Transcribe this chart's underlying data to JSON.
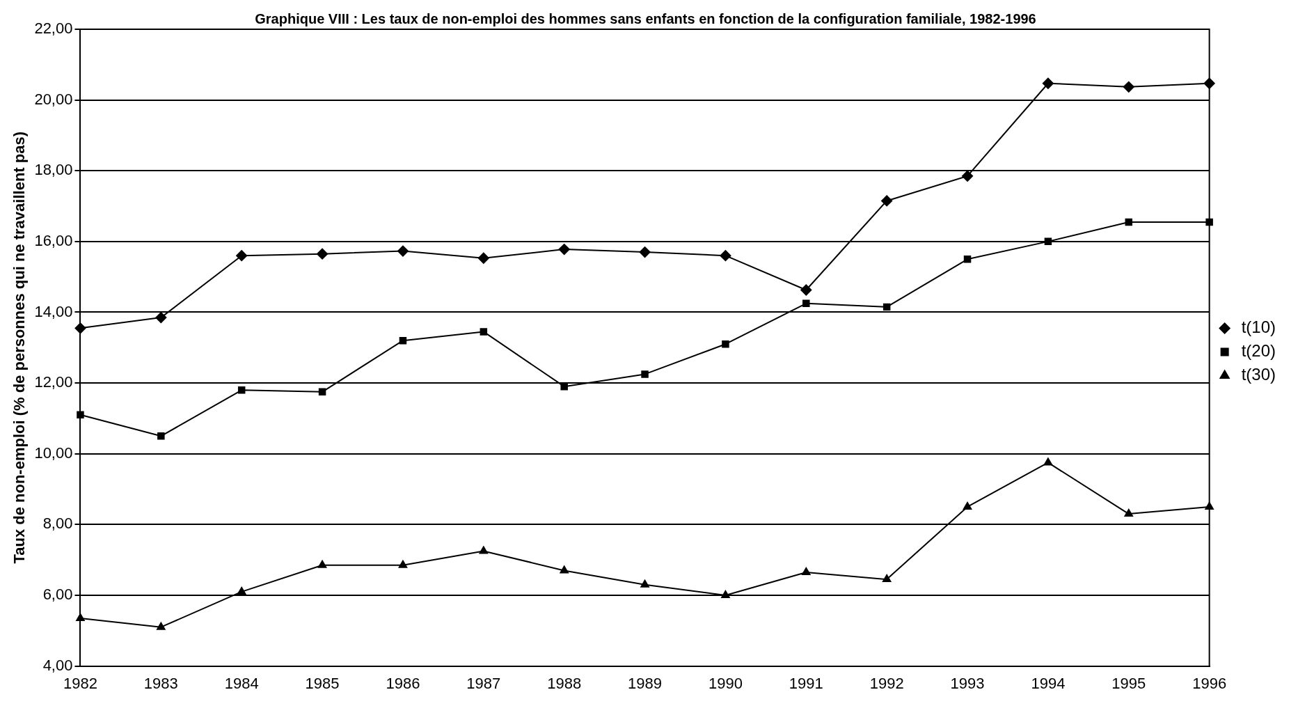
{
  "chart_data": {
    "type": "line",
    "title": "Graphique VIII : Les taux de non-emploi des hommes sans enfants en fonction de la configuration familiale, 1982-1996",
    "ylabel": "Taux de non-emploi (% de personnes qui ne travaillent pas)",
    "categories": [
      "1982",
      "1983",
      "1984",
      "1985",
      "1986",
      "1987",
      "1988",
      "1989",
      "1990",
      "1991",
      "1992",
      "1993",
      "1994",
      "1995",
      "1996"
    ],
    "series": [
      {
        "name": "t(10)",
        "color": "#000000",
        "marker": "diamond",
        "values": [
          13.55,
          13.85,
          15.6,
          15.65,
          15.73,
          15.53,
          15.78,
          15.7,
          15.6,
          14.63,
          17.15,
          17.85,
          20.47,
          20.37,
          20.47
        ]
      },
      {
        "name": "t(20)",
        "color": "#000000",
        "marker": "square",
        "values": [
          11.1,
          10.5,
          11.8,
          11.75,
          13.2,
          13.45,
          11.9,
          12.25,
          13.1,
          14.25,
          14.15,
          15.5,
          16.0,
          16.55,
          16.55
        ]
      },
      {
        "name": "t(30)",
        "color": "#000000",
        "marker": "triangle",
        "values": [
          5.35,
          5.1,
          6.1,
          6.85,
          6.85,
          7.25,
          6.7,
          6.3,
          6.0,
          6.65,
          6.45,
          8.5,
          9.75,
          8.3,
          8.5
        ]
      }
    ],
    "ylim": [
      4,
      22
    ],
    "yticks": [
      {
        "value": 4,
        "label": "4,00"
      },
      {
        "value": 6,
        "label": "6,00"
      },
      {
        "value": 8,
        "label": "8,00"
      },
      {
        "value": 10,
        "label": "10,00"
      },
      {
        "value": 12,
        "label": "12,00"
      },
      {
        "value": 14,
        "label": "14,00"
      },
      {
        "value": 16,
        "label": "16,00"
      },
      {
        "value": 18,
        "label": "18,00"
      },
      {
        "value": 20,
        "label": "20,00"
      },
      {
        "value": 22,
        "label": "22,00"
      }
    ],
    "grid": "y",
    "legend": "right",
    "line_style": "solid"
  }
}
